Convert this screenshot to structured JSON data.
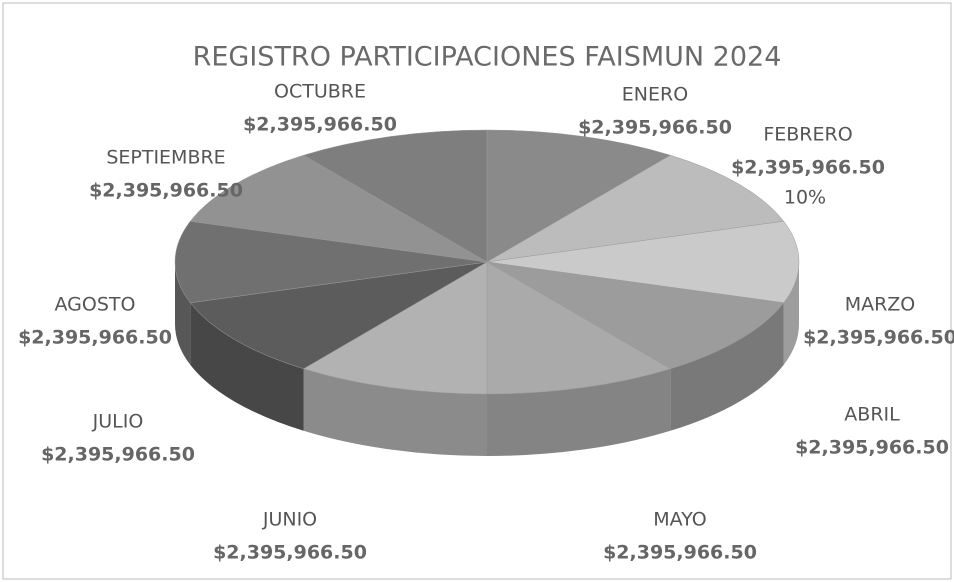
{
  "chart_data": {
    "type": "pie",
    "title": "REGISTRO PARTICIPACIONES FAISMUN 2024",
    "categories": [
      "ENERO",
      "FEBRERO",
      "MARZO",
      "ABRIL",
      "MAYO",
      "JUNIO",
      "JULIO",
      "AGOSTO",
      "SEPTIEMBRE",
      "OCTUBRE"
    ],
    "values": [
      2395966.5,
      2395966.5,
      2395966.5,
      2395966.5,
      2395966.5,
      2395966.5,
      2395966.5,
      2395966.5,
      2395966.5,
      2395966.5
    ],
    "value_labels": [
      "$2,395,966.50",
      "$2,395,966.50",
      "$2,395,966.50",
      "$2,395,966.50",
      "$2,395,966.50",
      "$2,395,966.50",
      "$2,395,966.50",
      "$2,395,966.50",
      "$2,395,966.50",
      "$2,395,966.50"
    ],
    "colors": [
      "#8a8a8a",
      "#bcbcbc",
      "#cacaca",
      "#9c9c9c",
      "#aaaaaa",
      "#b2b2b2",
      "#5c5c5c",
      "#707070",
      "#929292",
      "#7e7e7e"
    ],
    "annotations": [
      "10%"
    ]
  }
}
